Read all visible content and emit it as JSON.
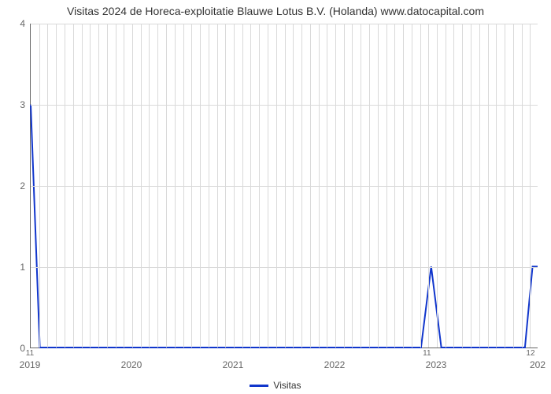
{
  "chart": {
    "type": "line",
    "title": "Visitas 2024 de Horeca-exploitatie Blauwe Lotus B.V. (Holanda) www.datocapital.com",
    "title_fontsize": 14,
    "background_color": "#ffffff",
    "grid_color": "#d9d9d9",
    "axis_color": "#666666",
    "text_color": "#666666",
    "yaxis": {
      "ticks": [
        0,
        1,
        2,
        3,
        4
      ],
      "ylim": [
        0,
        4
      ],
      "label_fontsize": 12
    },
    "xaxis": {
      "major_ticks": [
        "2019",
        "2020",
        "2021",
        "2022",
        "2023",
        "202"
      ],
      "major_positions": [
        0,
        0.2,
        0.4,
        0.6,
        0.8,
        1.0
      ],
      "minor_ticks": [
        {
          "label": "11",
          "pos": 0.0
        },
        {
          "label": "11",
          "pos": 0.782
        },
        {
          "label": "12",
          "pos": 0.986
        }
      ],
      "grid_minor_positions": [
        0.0167,
        0.0333,
        0.05,
        0.0667,
        0.0833,
        0.1,
        0.1167,
        0.1333,
        0.15,
        0.1667,
        0.1833,
        0.2,
        0.2167,
        0.2333,
        0.25,
        0.2667,
        0.2833,
        0.3,
        0.3167,
        0.3333,
        0.35,
        0.3667,
        0.3833,
        0.4,
        0.4167,
        0.4333,
        0.45,
        0.4667,
        0.4833,
        0.5,
        0.5167,
        0.5333,
        0.55,
        0.5667,
        0.5833,
        0.6,
        0.6167,
        0.6333,
        0.65,
        0.6667,
        0.6833,
        0.7,
        0.7167,
        0.7333,
        0.75,
        0.7667,
        0.7833,
        0.8,
        0.8167,
        0.8333,
        0.85,
        0.8667,
        0.8833,
        0.9,
        0.9167,
        0.9333,
        0.95,
        0.9667,
        0.9833
      ]
    },
    "series": {
      "label": "Visitas",
      "color": "#1136cc",
      "line_width": 2,
      "points": [
        {
          "x": 0.0,
          "y": 3.0
        },
        {
          "x": 0.018,
          "y": 0.0
        },
        {
          "x": 0.77,
          "y": 0.0
        },
        {
          "x": 0.79,
          "y": 1.0
        },
        {
          "x": 0.81,
          "y": 0.0
        },
        {
          "x": 0.975,
          "y": 0.0
        },
        {
          "x": 0.99,
          "y": 1.0
        },
        {
          "x": 1.0,
          "y": 1.0
        }
      ]
    },
    "legend": {
      "label": "Visitas",
      "position": "bottom-center"
    }
  }
}
